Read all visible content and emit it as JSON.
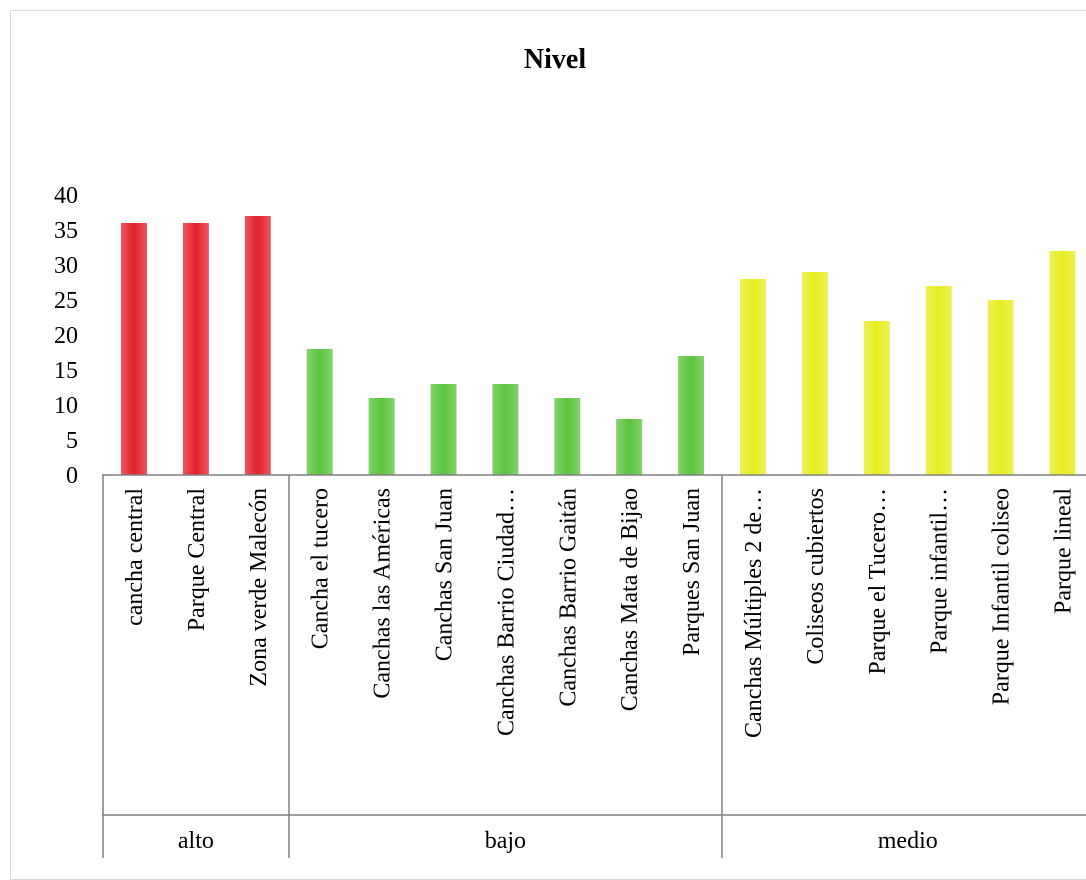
{
  "chart_data": {
    "type": "bar",
    "title": "Nivel",
    "xlabel": "",
    "ylabel": "",
    "ylim": [
      0,
      40
    ],
    "yticks": [
      0,
      5,
      10,
      15,
      20,
      25,
      30,
      35,
      40
    ],
    "grid": false,
    "legend": "none",
    "groups": [
      {
        "name": "alto",
        "color": "#e3202a",
        "count": 3
      },
      {
        "name": "bajo",
        "color": "#5ac43c",
        "count": 7
      },
      {
        "name": "medio",
        "color": "#e6ec1e",
        "count": 6
      }
    ],
    "categories": [
      "cancha central",
      "Parque Central",
      "Zona verde Malecón",
      "Cancha   el tucero",
      "Canchas  las Américas",
      "Canchas  San Juan",
      "Canchas Barrio Ciudad…",
      "Canchas Barrio Gaitán",
      "Canchas Mata de Bijao",
      "Parques San Juan",
      "Canchas Múltiples 2 de…",
      "Coliseos cubiertos",
      "Parque el Tucero…",
      "Parque infantil…",
      "Parque Infantil coliseo",
      "Parque lineal"
    ],
    "values": [
      36,
      36,
      37,
      18,
      11,
      13,
      13,
      11,
      8,
      17,
      28,
      29,
      22,
      27,
      25,
      32
    ]
  }
}
